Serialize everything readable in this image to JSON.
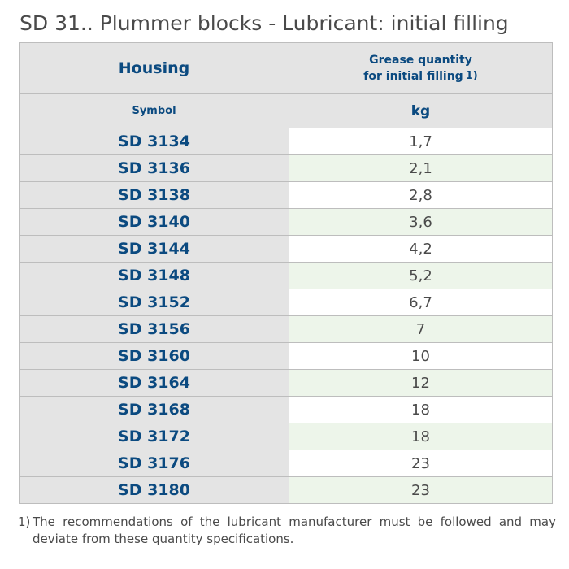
{
  "title": "SD 31.. Plummer blocks - Lubricant: initial filling",
  "table": {
    "header": {
      "housing": "Housing",
      "grease_line1": "Grease quantity",
      "grease_line2": "for initial filling",
      "grease_note": "1)",
      "symbol": "Symbol",
      "unit": "kg"
    },
    "rows": [
      {
        "symbol": "SD 3134",
        "quantity": "1,7"
      },
      {
        "symbol": "SD 3136",
        "quantity": "2,1"
      },
      {
        "symbol": "SD 3138",
        "quantity": "2,8"
      },
      {
        "symbol": "SD 3140",
        "quantity": "3,6"
      },
      {
        "symbol": "SD 3144",
        "quantity": "4,2"
      },
      {
        "symbol": "SD 3148",
        "quantity": "5,2"
      },
      {
        "symbol": "SD 3152",
        "quantity": "6,7"
      },
      {
        "symbol": "SD 3156",
        "quantity": "7"
      },
      {
        "symbol": "SD 3160",
        "quantity": "10"
      },
      {
        "symbol": "SD 3164",
        "quantity": "12"
      },
      {
        "symbol": "SD 3168",
        "quantity": "18"
      },
      {
        "symbol": "SD 3172",
        "quantity": "18"
      },
      {
        "symbol": "SD 3176",
        "quantity": "23"
      },
      {
        "symbol": "SD 3180",
        "quantity": "23"
      }
    ]
  },
  "footnote": {
    "mark": "1)",
    "text": "The recommendations of the lubricant manufacturer must be followed and may deviate from these quantity specifications."
  },
  "colors": {
    "header_text": "#0b4a80",
    "header_bg": "#e4e4e4",
    "stripe_bg": "#edf5ea",
    "body_text": "#4a4a4a",
    "border": "#bdbdbd"
  }
}
